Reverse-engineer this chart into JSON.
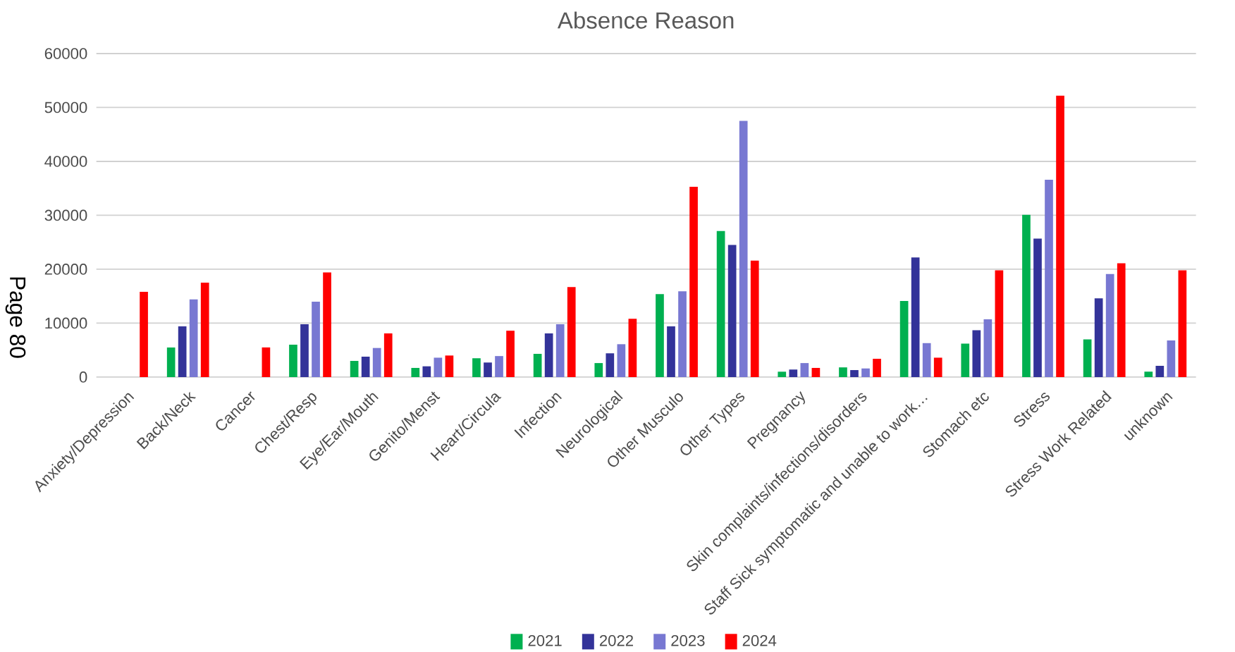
{
  "chart_data": {
    "type": "bar",
    "title": "Absence Reason",
    "categories": [
      "Anxiety/Depression",
      "Back/Neck",
      "Cancer",
      "Chest/Resp",
      "Eye/Ear/Mouth",
      "Genito/Menst",
      "Heart/Circula",
      "Infection",
      "Neurological",
      "Other Musculo",
      "Other Types",
      "Pregnancy",
      "Skin complaints/infections/disorders",
      "Staff Sick symptomatic and unable to work…",
      "Stomach etc",
      "Stress",
      "Stress Work Related",
      "unknown"
    ],
    "series": [
      {
        "name": "2021",
        "color": "#00b050",
        "values": [
          null,
          5500,
          null,
          6000,
          3000,
          1700,
          3500,
          4300,
          2600,
          15400,
          27100,
          1000,
          1800,
          14100,
          6200,
          30100,
          7000,
          1000
        ]
      },
      {
        "name": "2022",
        "color": "#333399",
        "values": [
          null,
          9400,
          null,
          9800,
          3800,
          2000,
          2700,
          8100,
          4400,
          9400,
          24500,
          1400,
          1300,
          22200,
          8700,
          25700,
          14600,
          2100
        ]
      },
      {
        "name": "2023",
        "color": "#7878d2",
        "values": [
          null,
          14400,
          null,
          14000,
          5400,
          3600,
          3900,
          9800,
          6100,
          15900,
          47500,
          2600,
          1600,
          6300,
          10700,
          36600,
          19100,
          6800
        ]
      },
      {
        "name": "2024",
        "color": "#ff0000",
        "values": [
          15800,
          17500,
          5500,
          19400,
          8100,
          4000,
          8600,
          16700,
          10800,
          35300,
          21600,
          1700,
          3400,
          3600,
          19800,
          52200,
          21100,
          19800
        ]
      }
    ],
    "ylim": [
      0,
      60000
    ],
    "yticks": [
      0,
      10000,
      20000,
      30000,
      40000,
      50000,
      60000
    ],
    "grid": "y",
    "legend": "bottom",
    "annotations": [
      "Page 80"
    ]
  }
}
